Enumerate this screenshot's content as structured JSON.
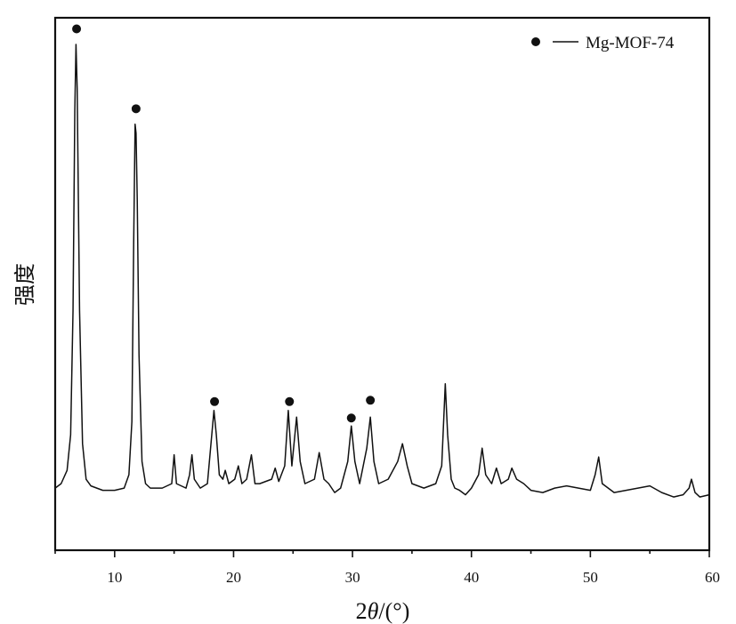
{
  "chart_data": {
    "type": "line",
    "xlabel_prefix": "2",
    "xlabel_symbol": "θ",
    "xlabel_suffix": "/(°)",
    "ylabel": "强度",
    "xlim": [
      5,
      60
    ],
    "ylim": [
      -0.14,
      1.06
    ],
    "x_ticks": [
      10,
      20,
      30,
      40,
      50,
      60
    ],
    "y_ticks_shown": false,
    "grid": false,
    "legend_position": "top-right",
    "series": [
      {
        "name": "Mg-MOF-74",
        "color": "#111111",
        "points": [
          [
            5.0,
            0.0
          ],
          [
            5.5,
            0.01
          ],
          [
            6.0,
            0.04
          ],
          [
            6.3,
            0.12
          ],
          [
            6.5,
            0.4
          ],
          [
            6.65,
            0.85
          ],
          [
            6.75,
            1.0
          ],
          [
            6.85,
            0.9
          ],
          [
            7.05,
            0.4
          ],
          [
            7.3,
            0.1
          ],
          [
            7.6,
            0.02
          ],
          [
            8.0,
            0.005
          ],
          [
            9.0,
            -0.005
          ],
          [
            10.0,
            -0.005
          ],
          [
            10.8,
            0.0
          ],
          [
            11.2,
            0.03
          ],
          [
            11.45,
            0.15
          ],
          [
            11.6,
            0.55
          ],
          [
            11.72,
            0.82
          ],
          [
            11.8,
            0.8
          ],
          [
            11.9,
            0.65
          ],
          [
            12.05,
            0.3
          ],
          [
            12.3,
            0.06
          ],
          [
            12.6,
            0.01
          ],
          [
            13.0,
            0.0
          ],
          [
            14.0,
            0.0
          ],
          [
            14.8,
            0.01
          ],
          [
            15.0,
            0.075
          ],
          [
            15.2,
            0.01
          ],
          [
            15.6,
            0.005
          ],
          [
            16.0,
            0.0
          ],
          [
            16.3,
            0.03
          ],
          [
            16.5,
            0.075
          ],
          [
            16.7,
            0.02
          ],
          [
            17.2,
            0.0
          ],
          [
            17.8,
            0.01
          ],
          [
            18.1,
            0.1
          ],
          [
            18.35,
            0.175
          ],
          [
            18.55,
            0.12
          ],
          [
            18.8,
            0.03
          ],
          [
            19.1,
            0.02
          ],
          [
            19.3,
            0.04
          ],
          [
            19.6,
            0.01
          ],
          [
            20.1,
            0.02
          ],
          [
            20.4,
            0.05
          ],
          [
            20.7,
            0.01
          ],
          [
            21.1,
            0.02
          ],
          [
            21.5,
            0.075
          ],
          [
            21.8,
            0.01
          ],
          [
            22.2,
            0.01
          ],
          [
            23.2,
            0.02
          ],
          [
            23.5,
            0.045
          ],
          [
            23.8,
            0.015
          ],
          [
            24.3,
            0.05
          ],
          [
            24.6,
            0.175
          ],
          [
            24.9,
            0.05
          ],
          [
            25.3,
            0.16
          ],
          [
            25.6,
            0.06
          ],
          [
            26.0,
            0.01
          ],
          [
            26.8,
            0.02
          ],
          [
            27.2,
            0.08
          ],
          [
            27.6,
            0.02
          ],
          [
            28.0,
            0.01
          ],
          [
            28.5,
            -0.01
          ],
          [
            29.0,
            0.0
          ],
          [
            29.6,
            0.06
          ],
          [
            29.9,
            0.14
          ],
          [
            30.2,
            0.06
          ],
          [
            30.6,
            0.01
          ],
          [
            31.2,
            0.09
          ],
          [
            31.5,
            0.16
          ],
          [
            31.8,
            0.06
          ],
          [
            32.2,
            0.01
          ],
          [
            33.0,
            0.02
          ],
          [
            33.8,
            0.06
          ],
          [
            34.2,
            0.1
          ],
          [
            34.6,
            0.05
          ],
          [
            35.0,
            0.01
          ],
          [
            36.0,
            0.0
          ],
          [
            37.0,
            0.01
          ],
          [
            37.5,
            0.05
          ],
          [
            37.8,
            0.235
          ],
          [
            38.0,
            0.12
          ],
          [
            38.3,
            0.02
          ],
          [
            38.6,
            0.0
          ],
          [
            39.0,
            -0.005
          ],
          [
            39.5,
            -0.015
          ],
          [
            40.0,
            0.0
          ],
          [
            40.6,
            0.03
          ],
          [
            40.9,
            0.09
          ],
          [
            41.2,
            0.03
          ],
          [
            41.7,
            0.01
          ],
          [
            42.1,
            0.045
          ],
          [
            42.5,
            0.01
          ],
          [
            43.1,
            0.02
          ],
          [
            43.4,
            0.045
          ],
          [
            43.8,
            0.02
          ],
          [
            44.4,
            0.01
          ],
          [
            45.0,
            -0.005
          ],
          [
            46.0,
            -0.01
          ],
          [
            47.0,
            0.0
          ],
          [
            48.0,
            0.005
          ],
          [
            49.0,
            0.0
          ],
          [
            50.0,
            -0.005
          ],
          [
            50.4,
            0.03
          ],
          [
            50.7,
            0.07
          ],
          [
            51.0,
            0.01
          ],
          [
            52.0,
            -0.01
          ],
          [
            53.0,
            -0.005
          ],
          [
            54.0,
            0.0
          ],
          [
            55.0,
            0.005
          ],
          [
            56.0,
            -0.01
          ],
          [
            57.0,
            -0.02
          ],
          [
            57.8,
            -0.015
          ],
          [
            58.3,
            0.0
          ],
          [
            58.5,
            0.02
          ],
          [
            58.8,
            -0.01
          ],
          [
            59.2,
            -0.02
          ],
          [
            60.0,
            -0.015
          ]
        ]
      }
    ],
    "markers": [
      {
        "x": 6.8,
        "y": 1.035
      },
      {
        "x": 11.8,
        "y": 0.855
      },
      {
        "x": 18.4,
        "y": 0.195
      },
      {
        "x": 24.7,
        "y": 0.195
      },
      {
        "x": 29.9,
        "y": 0.158
      },
      {
        "x": 31.5,
        "y": 0.198
      }
    ]
  }
}
